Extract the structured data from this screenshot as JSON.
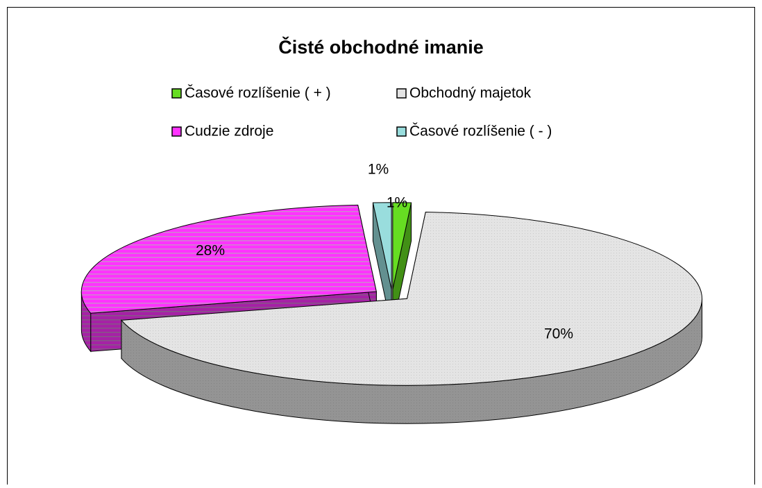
{
  "chart_data": {
    "type": "pie3d",
    "title": "Čisté obchodné imanie",
    "categories": [
      "Časové rozlíšenie ( + )",
      "Obchodný majetok",
      "Cudzie zdroje",
      "Časové rozlíšenie  ( - )"
    ],
    "values": [
      1,
      70,
      28,
      1
    ],
    "value_labels": [
      "1%",
      "70%",
      "28%",
      "1%"
    ],
    "colors": [
      "#66dd22",
      "#e4e4e4",
      "#ff33ff",
      "#99dddd"
    ]
  }
}
